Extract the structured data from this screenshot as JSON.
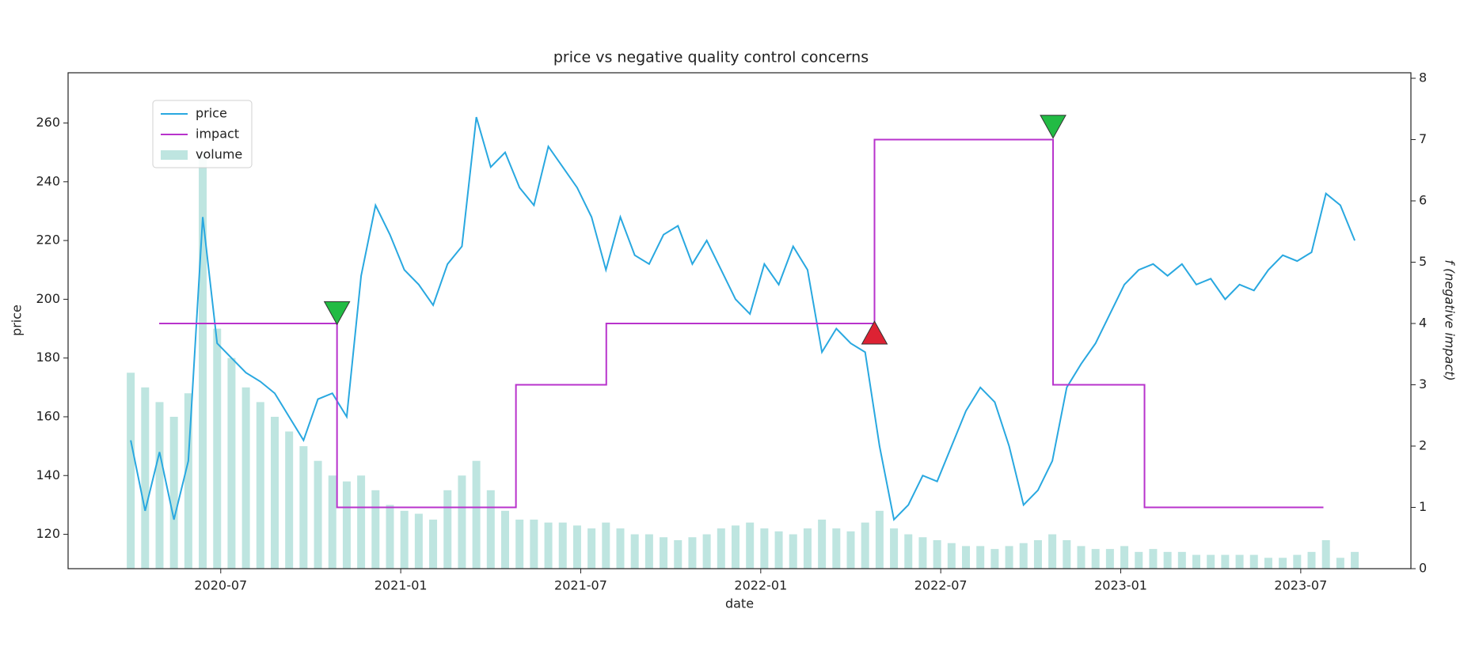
{
  "chart_data": {
    "type": "line",
    "title": "price vs negative quality control concerns",
    "xlabel": "date",
    "ylabel": "price",
    "y2label": "f (negative impact)",
    "legend": "upper left",
    "xlim": [
      2020.076,
      2023.806
    ],
    "ylim": [
      108.3,
      277.1
    ],
    "y2lim": [
      0,
      8.09
    ],
    "xticks": [
      {
        "value": 2020.5,
        "label": "2020-07"
      },
      {
        "value": 2021.0,
        "label": "2021-01"
      },
      {
        "value": 2021.5,
        "label": "2021-07"
      },
      {
        "value": 2022.0,
        "label": "2022-01"
      },
      {
        "value": 2022.5,
        "label": "2022-07"
      },
      {
        "value": 2023.0,
        "label": "2023-01"
      },
      {
        "value": 2023.5,
        "label": "2023-07"
      }
    ],
    "yticks": [
      120,
      140,
      160,
      180,
      200,
      220,
      240,
      260
    ],
    "y2ticks": [
      0,
      1,
      2,
      3,
      4,
      5,
      6,
      7,
      8
    ],
    "series": [
      {
        "name": "price",
        "color": "#29a8e0",
        "x": [
          2020.25,
          2020.29,
          2020.33,
          2020.37,
          2020.41,
          2020.45,
          2020.49,
          2020.53,
          2020.57,
          2020.61,
          2020.65,
          2020.69,
          2020.73,
          2020.77,
          2020.81,
          2020.85,
          2020.89,
          2020.93,
          2020.97,
          2021.01,
          2021.05,
          2021.09,
          2021.13,
          2021.17,
          2021.21,
          2021.25,
          2021.29,
          2021.33,
          2021.37,
          2021.41,
          2021.45,
          2021.49,
          2021.53,
          2021.57,
          2021.61,
          2021.65,
          2021.69,
          2021.73,
          2021.77,
          2021.81,
          2021.85,
          2021.89,
          2021.93,
          2021.97,
          2022.01,
          2022.05,
          2022.09,
          2022.13,
          2022.17,
          2022.21,
          2022.25,
          2022.29,
          2022.33,
          2022.37,
          2022.41,
          2022.45,
          2022.49,
          2022.53,
          2022.57,
          2022.61,
          2022.65,
          2022.69,
          2022.73,
          2022.77,
          2022.81,
          2022.85,
          2022.89,
          2022.93,
          2022.97,
          2023.01,
          2023.05,
          2023.09,
          2023.13,
          2023.17,
          2023.21,
          2023.25,
          2023.29,
          2023.33,
          2023.37,
          2023.41,
          2023.45,
          2023.49,
          2023.53,
          2023.57,
          2023.61,
          2023.65
        ],
        "values": [
          152,
          128,
          148,
          125,
          145,
          228,
          185,
          180,
          175,
          172,
          168,
          160,
          152,
          166,
          168,
          160,
          208,
          232,
          222,
          210,
          205,
          198,
          212,
          218,
          262,
          245,
          250,
          238,
          232,
          252,
          245,
          238,
          228,
          210,
          228,
          215,
          212,
          222,
          225,
          212,
          220,
          210,
          200,
          195,
          212,
          205,
          218,
          210,
          182,
          190,
          185,
          182,
          150,
          125,
          130,
          140,
          138,
          150,
          162,
          170,
          165,
          150,
          130,
          135,
          145,
          170,
          178,
          185,
          195,
          205,
          210,
          212,
          208,
          212,
          205,
          207,
          200,
          205,
          203,
          210,
          215,
          213,
          216,
          236,
          232,
          220
        ]
      },
      {
        "name": "impact",
        "color": "#b833cc",
        "axis": "y2",
        "step": "post",
        "x": [
          2020.329,
          2020.823,
          2021.32,
          2021.571,
          2022.316,
          2022.812,
          2023.066,
          2023.563
        ],
        "values": [
          4,
          1,
          3,
          4,
          7,
          3,
          1,
          1
        ]
      },
      {
        "name": "volume",
        "color": "#88cfc7",
        "type": "bar",
        "x": [
          2020.25,
          2020.29,
          2020.33,
          2020.37,
          2020.41,
          2020.45,
          2020.49,
          2020.53,
          2020.57,
          2020.61,
          2020.65,
          2020.69,
          2020.73,
          2020.77,
          2020.81,
          2020.85,
          2020.89,
          2020.93,
          2020.97,
          2021.01,
          2021.05,
          2021.09,
          2021.13,
          2021.17,
          2021.21,
          2021.25,
          2021.29,
          2021.33,
          2021.37,
          2021.41,
          2021.45,
          2021.49,
          2021.53,
          2021.57,
          2021.61,
          2021.65,
          2021.69,
          2021.73,
          2021.77,
          2021.81,
          2021.85,
          2021.89,
          2021.93,
          2021.97,
          2022.01,
          2022.05,
          2022.09,
          2022.13,
          2022.17,
          2022.21,
          2022.25,
          2022.29,
          2022.33,
          2022.37,
          2022.41,
          2022.45,
          2022.49,
          2022.53,
          2022.57,
          2022.61,
          2022.65,
          2022.69,
          2022.73,
          2022.77,
          2022.81,
          2022.85,
          2022.89,
          2022.93,
          2022.97,
          2023.01,
          2023.05,
          2023.09,
          2023.13,
          2023.17,
          2023.21,
          2023.25,
          2023.29,
          2023.33,
          2023.37,
          2023.41,
          2023.45,
          2023.49,
          2023.53,
          2023.57,
          2023.61,
          2023.65
        ],
        "values": [
          175,
          170,
          165,
          160,
          168,
          250,
          190,
          180,
          170,
          165,
          160,
          155,
          150,
          145,
          140,
          138,
          140,
          135,
          130,
          128,
          127,
          125,
          135,
          140,
          145,
          135,
          128,
          125,
          125,
          124,
          124,
          123,
          122,
          124,
          122,
          120,
          120,
          119,
          118,
          119,
          120,
          122,
          123,
          124,
          122,
          121,
          120,
          122,
          125,
          122,
          121,
          124,
          128,
          122,
          120,
          119,
          118,
          117,
          116,
          116,
          115,
          116,
          117,
          118,
          120,
          118,
          116,
          115,
          115,
          116,
          114,
          115,
          114,
          114,
          113,
          113,
          113,
          113,
          113,
          112,
          112,
          113,
          114,
          118,
          112,
          114
        ]
      }
    ],
    "markers": [
      {
        "x": 2020.823,
        "y": 4.17,
        "axis": "y2",
        "shape": "down",
        "color": "#22bb44"
      },
      {
        "x": 2022.316,
        "y": 3.85,
        "axis": "y2",
        "shape": "up",
        "color": "#dd2233"
      },
      {
        "x": 2022.812,
        "y": 7.21,
        "axis": "y2",
        "shape": "down",
        "color": "#22bb44"
      }
    ]
  }
}
